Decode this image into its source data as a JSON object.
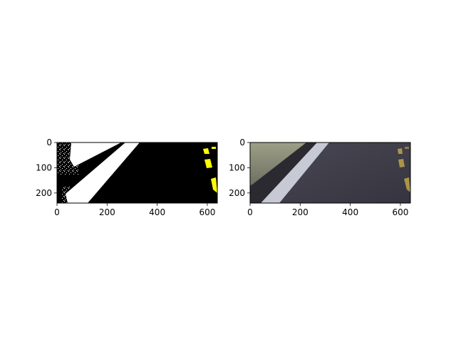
{
  "chart_data": [
    {
      "type": "image",
      "description_key": "segmentation-mask",
      "x_ticks": [
        0,
        200,
        400,
        600
      ],
      "y_ticks": [
        0,
        100,
        200
      ],
      "xlim": [
        0,
        640
      ],
      "ylim": [
        240,
        0
      ],
      "colors": {
        "background": "#000000",
        "white_lane": "#ffffff",
        "yellow_lane": "#ffff00"
      }
    },
    {
      "type": "image",
      "description_key": "camera-frame",
      "x_ticks": [
        0,
        200,
        400,
        600
      ],
      "y_ticks": [
        0,
        100,
        200
      ],
      "xlim": [
        0,
        640
      ],
      "ylim": [
        240,
        0
      ],
      "colors": {
        "road": "#3d3c48",
        "wall": "#8e8f76",
        "white_lane": "#c9cbd6",
        "yellow_lane": "#a9954a"
      }
    }
  ]
}
